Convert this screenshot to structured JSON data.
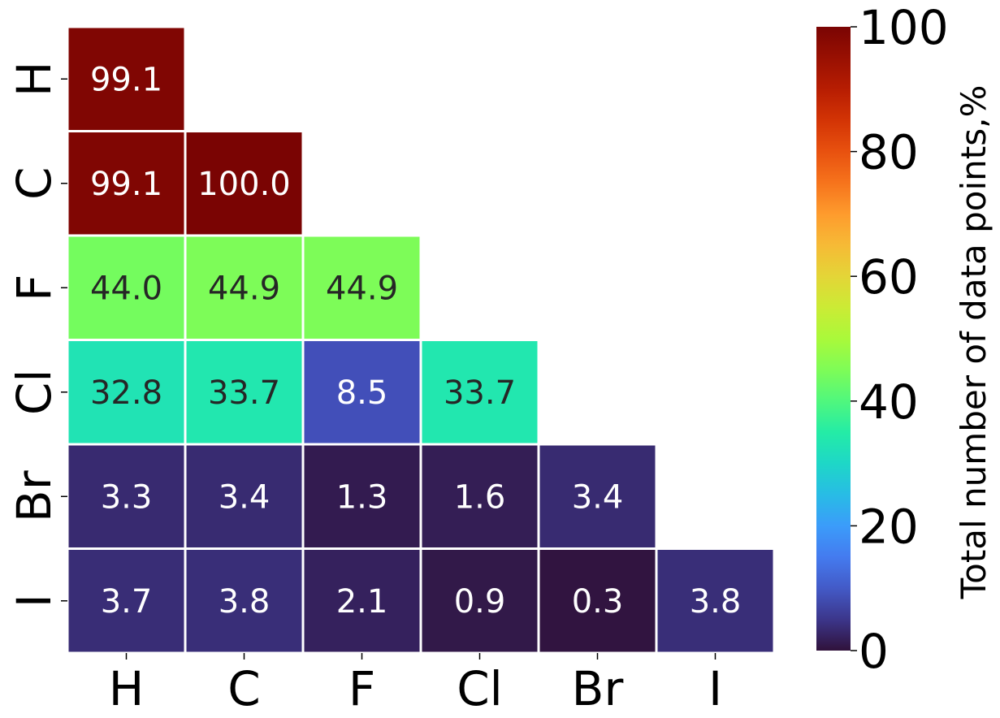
{
  "chart_data": {
    "type": "heatmap",
    "title": "",
    "xlabel": "",
    "ylabel": "",
    "x_categories": [
      "H",
      "C",
      "F",
      "Cl",
      "Br",
      "I"
    ],
    "y_categories": [
      "H",
      "C",
      "F",
      "Cl",
      "Br",
      "I"
    ],
    "mask": "upper-triangle (only cells with column index <= row index shown)",
    "values": [
      [
        99.1
      ],
      [
        99.1,
        100.0
      ],
      [
        44.0,
        44.9,
        44.9
      ],
      [
        32.8,
        33.7,
        8.5,
        33.7
      ],
      [
        3.3,
        3.4,
        1.3,
        1.6,
        3.4
      ],
      [
        3.7,
        3.8,
        2.1,
        0.9,
        0.3,
        3.8
      ]
    ],
    "value_labels": [
      [
        "99.1"
      ],
      [
        "99.1",
        "100.0"
      ],
      [
        "44.0",
        "44.9",
        "44.9"
      ],
      [
        "32.8",
        "33.7",
        "8.5",
        "33.7"
      ],
      [
        "3.3",
        "3.4",
        "1.3",
        "1.6",
        "3.4"
      ],
      [
        "3.7",
        "3.8",
        "2.1",
        "0.9",
        "0.3",
        "3.8"
      ]
    ],
    "colormap": "turbo",
    "colorbar": {
      "label": "Total number of data points,%",
      "range": [
        0,
        100
      ],
      "ticks": [
        0,
        20,
        40,
        60,
        80,
        100
      ],
      "tick_labels": [
        "0",
        "20",
        "40",
        "60",
        "80",
        "100"
      ]
    },
    "grid_lines": "white",
    "legend": "colorbar-right"
  }
}
